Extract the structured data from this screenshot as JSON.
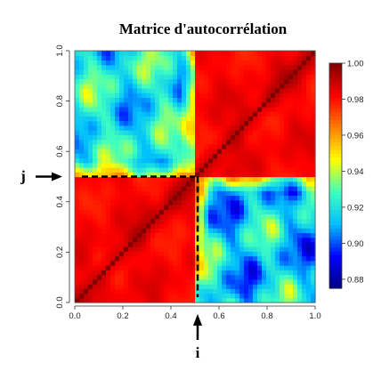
{
  "chart_data": {
    "type": "heatmap",
    "title": "Matrice d'autocorrélation",
    "xlabel": "",
    "ylabel": "",
    "xlim": [
      0,
      1
    ],
    "ylim": [
      0,
      1
    ],
    "x_ticks": [
      "0.0",
      "0.2",
      "0.4",
      "0.6",
      "0.8",
      "1.0"
    ],
    "y_ticks": [
      "0.0",
      "0.2",
      "0.4",
      "0.6",
      "0.8",
      "1.0"
    ],
    "colorbar": {
      "min": 0.875,
      "max": 1.0,
      "ticks": [
        "0.88",
        "0.90",
        "0.92",
        "0.94",
        "0.96",
        "0.98",
        "1.00"
      ],
      "colors": [
        "#00007f",
        "#0000ff",
        "#00bfff",
        "#40ffbf",
        "#ffff00",
        "#ff7f00",
        "#ff0000",
        "#7f0000"
      ]
    },
    "regions": [
      {
        "x_range": [
          0,
          0.5
        ],
        "y_range": [
          0,
          0.5
        ],
        "value_range": [
          0.975,
          0.99
        ]
      },
      {
        "x_range": [
          0.5,
          1
        ],
        "y_range": [
          0.5,
          1
        ],
        "value_range": [
          0.975,
          0.99
        ]
      },
      {
        "x_range": [
          0,
          0.5
        ],
        "y_range": [
          0.5,
          1
        ],
        "value_range": [
          0.89,
          0.95
        ]
      },
      {
        "x_range": [
          0.5,
          1
        ],
        "y_range": [
          0,
          0.5
        ],
        "value_range": [
          0.88,
          0.95
        ]
      }
    ],
    "diagonal_value": 1.0,
    "annotations": [
      {
        "label": "j",
        "axis": "y",
        "value": 0.5
      },
      {
        "label": "i",
        "axis": "x",
        "value": 0.5
      }
    ]
  }
}
